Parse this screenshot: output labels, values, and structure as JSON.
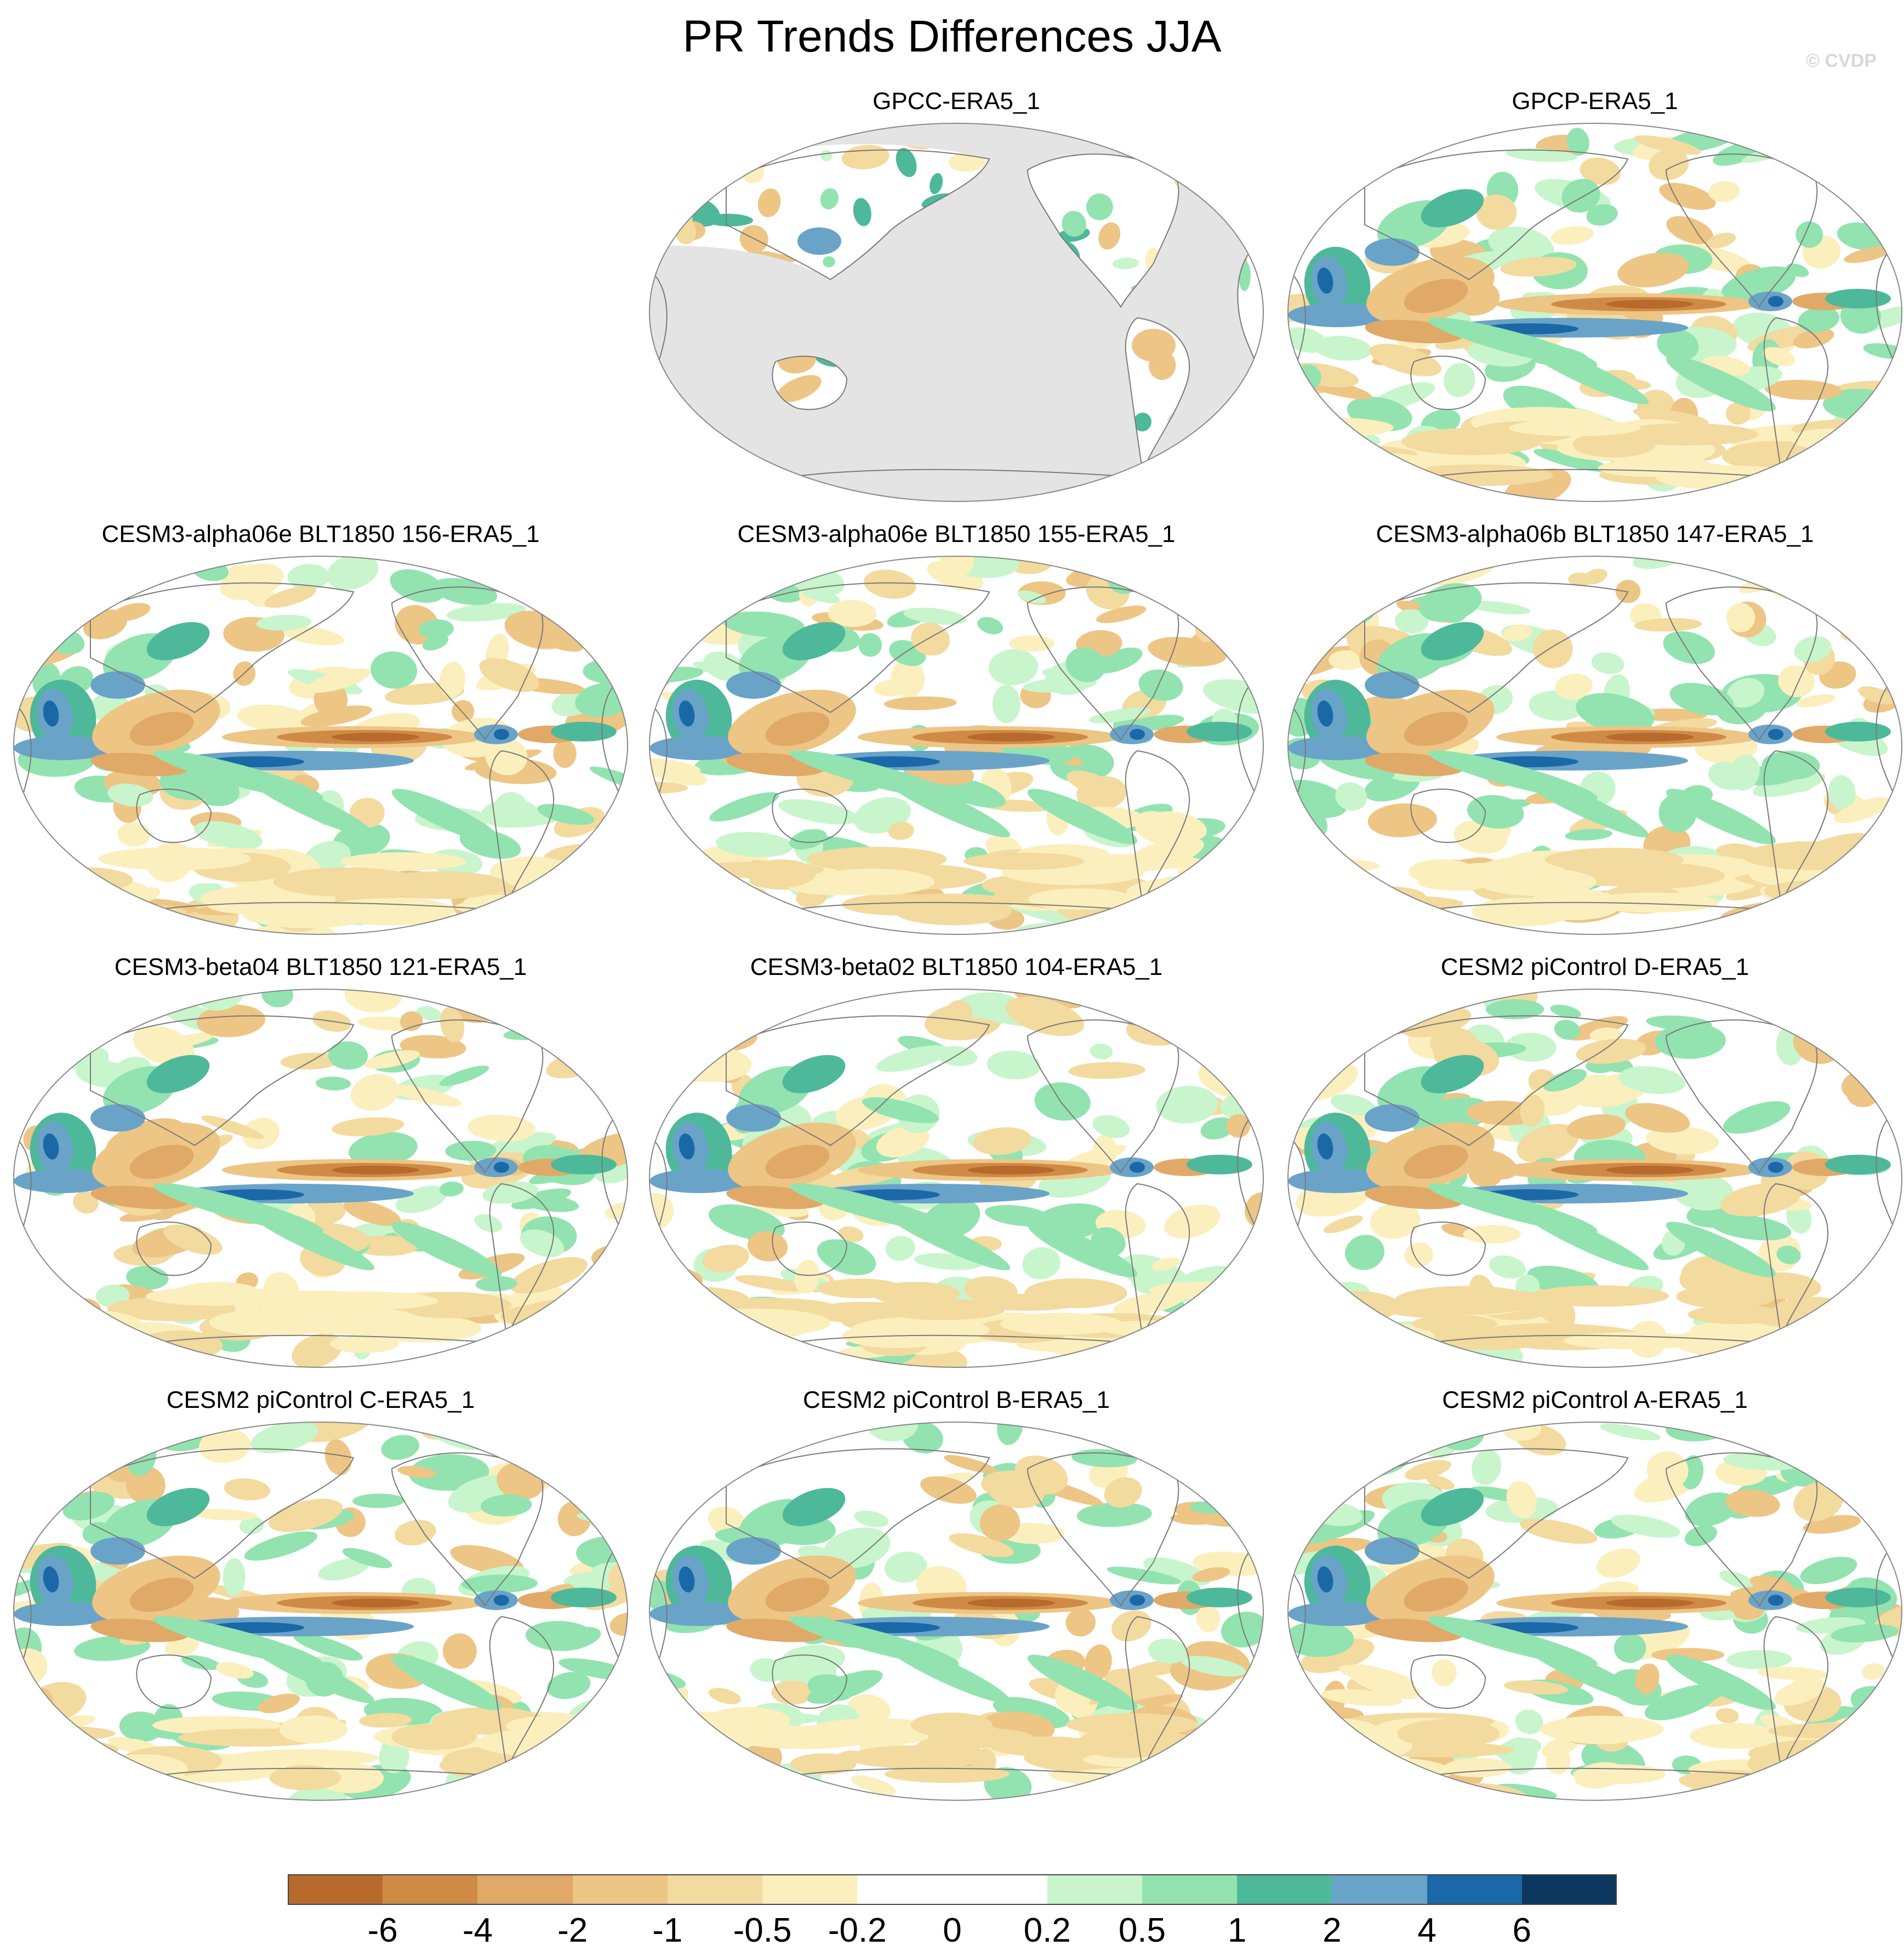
{
  "title": "PR Trends Differences JJA",
  "credit": "© CVDP",
  "panels": [
    {
      "title": "GPCC-ERA5_1",
      "type": "gpcc"
    },
    {
      "title": "GPCP-ERA5_1",
      "type": "full"
    },
    {
      "title": "CESM3-alpha06e BLT1850 156-ERA5_1",
      "type": "full"
    },
    {
      "title": "CESM3-alpha06e BLT1850 155-ERA5_1",
      "type": "full"
    },
    {
      "title": "CESM3-alpha06b BLT1850 147-ERA5_1",
      "type": "full"
    },
    {
      "title": "CESM3-beta04 BLT1850 121-ERA5_1",
      "type": "full"
    },
    {
      "title": "CESM3-beta02 BLT1850 104-ERA5_1",
      "type": "full"
    },
    {
      "title": "CESM2 piControl D-ERA5_1",
      "type": "full"
    },
    {
      "title": "CESM2 piControl C-ERA5_1",
      "type": "full"
    },
    {
      "title": "CESM2 piControl B-ERA5_1",
      "type": "full"
    },
    {
      "title": "CESM2 piControl A-ERA5_1",
      "type": "full"
    }
  ],
  "colorbar": {
    "labels": [
      "-6",
      "-4",
      "-2",
      "-1",
      "-0.5",
      "-0.2",
      "0",
      "0.2",
      "0.5",
      "1",
      "2",
      "4",
      "6"
    ],
    "colors": [
      "#b8692c",
      "#cf8b45",
      "#e0a967",
      "#edc585",
      "#f3da9f",
      "#fbefbd",
      "#ffffff",
      "#ffffff",
      "#c8f5cc",
      "#92e3b0",
      "#4eb89a",
      "#6aa3c8",
      "#1a68a8",
      "#0c3860"
    ]
  },
  "map_colors": {
    "ocean_missing": "#e4e4e4",
    "coast": "#7a7a7a",
    "border": "#888888"
  }
}
